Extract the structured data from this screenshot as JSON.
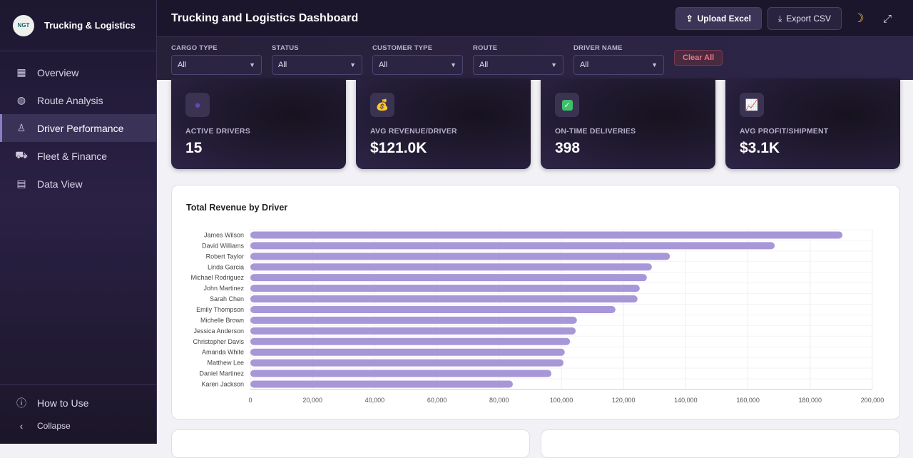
{
  "sidebar": {
    "logo_text": "NGT",
    "brand": "Trucking & Logistics",
    "items": [
      {
        "label": "Overview",
        "icon": "grid-icon"
      },
      {
        "label": "Route Analysis",
        "icon": "globe-icon"
      },
      {
        "label": "Driver Performance",
        "icon": "user-icon",
        "active": true
      },
      {
        "label": "Fleet & Finance",
        "icon": "truck-icon"
      },
      {
        "label": "Data View",
        "icon": "document-icon"
      }
    ],
    "how_to": "How to Use",
    "collapse": "Collapse"
  },
  "header": {
    "title": "Trucking and Logistics Dashboard",
    "upload": "Upload Excel",
    "export": "Export CSV"
  },
  "filters": [
    {
      "label": "CARGO TYPE",
      "value": "All"
    },
    {
      "label": "STATUS",
      "value": "All"
    },
    {
      "label": "CUSTOMER TYPE",
      "value": "All"
    },
    {
      "label": "ROUTE",
      "value": "All"
    },
    {
      "label": "DRIVER NAME",
      "value": "All"
    }
  ],
  "clear_all": "Clear All",
  "kpis": [
    {
      "label": "ACTIVE DRIVERS",
      "value": "15",
      "icon": "user-icon"
    },
    {
      "label": "AVG REVENUE/DRIVER",
      "value": "$121.0K",
      "icon": "money-bag-icon"
    },
    {
      "label": "ON-TIME DELIVERIES",
      "value": "398",
      "icon": "check-icon"
    },
    {
      "label": "AVG PROFIT/SHIPMENT",
      "value": "$3.1K",
      "icon": "chart-icon"
    }
  ],
  "chart_data": {
    "type": "bar",
    "orientation": "horizontal",
    "title": "Total Revenue by Driver",
    "color": "#a897d8",
    "categories": [
      "James Wilson",
      "David Williams",
      "Robert Taylor",
      "Linda Garcia",
      "Michael Rodriguez",
      "John Martinez",
      "Sarah Chen",
      "Emily Thompson",
      "Michelle Brown",
      "Jessica Anderson",
      "Christopher Davis",
      "Amanda White",
      "Matthew Lee",
      "Daniel Martinez",
      "Karen Jackson"
    ],
    "values": [
      190400,
      168600,
      134900,
      129100,
      127500,
      125200,
      124500,
      117400,
      105000,
      104600,
      102800,
      101100,
      100700,
      96800,
      84400
    ],
    "xlim": [
      0,
      200000
    ],
    "xticks": [
      "0",
      "20,000",
      "40,000",
      "60,000",
      "80,000",
      "100,000",
      "120,000",
      "140,000",
      "160,000",
      "180,000",
      "200,000"
    ],
    "grid": true
  }
}
